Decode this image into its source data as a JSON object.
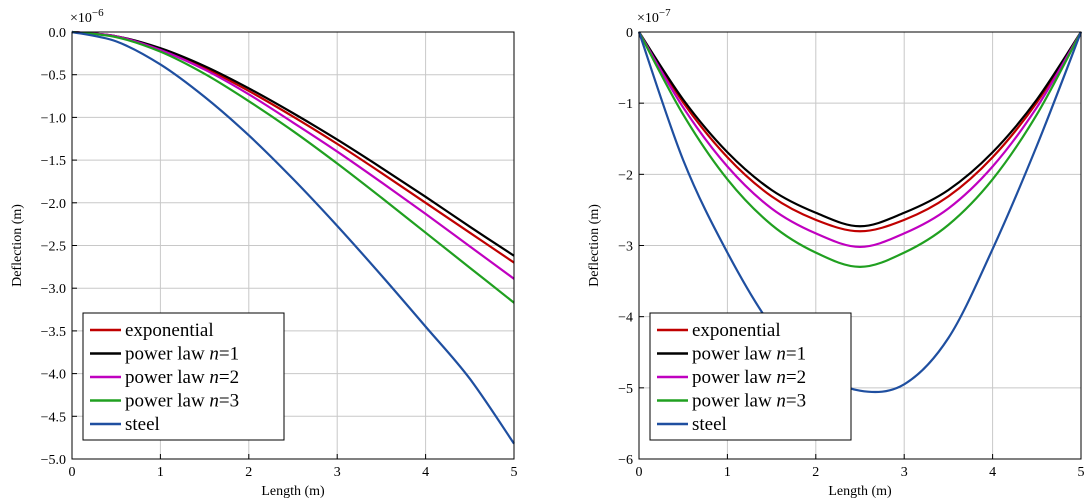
{
  "chart_data": [
    {
      "type": "line",
      "xlabel": "Length (m)",
      "ylabel": "Deflection (m)",
      "multiplier_prefix": "×10",
      "multiplier_exp": "−6",
      "xlim": [
        0,
        5
      ],
      "ylim": [
        -5.0,
        0.0
      ],
      "xticks": [
        "0",
        "1",
        "2",
        "3",
        "4",
        "5"
      ],
      "yticks": [
        "0.0",
        "−0.5",
        "−1.0",
        "−1.5",
        "−2.0",
        "−2.5",
        "−3.0",
        "−3.5",
        "−4.0",
        "−4.5",
        "−5.0"
      ],
      "grid": true,
      "legend_position": "bottom-left",
      "x": [
        0,
        0.5,
        1,
        1.5,
        2,
        2.5,
        3,
        3.5,
        4,
        4.5,
        5
      ],
      "series": [
        {
          "name": "exponential",
          "color": "#c00000",
          "values": [
            0,
            -0.05,
            -0.2,
            -0.42,
            -0.69,
            -0.99,
            -1.31,
            -1.65,
            -2.0,
            -2.35,
            -2.7
          ]
        },
        {
          "name": "power law n=1",
          "color": "#000000",
          "values": [
            0,
            -0.05,
            -0.19,
            -0.4,
            -0.66,
            -0.95,
            -1.26,
            -1.59,
            -1.93,
            -2.28,
            -2.62
          ]
        },
        {
          "name": "power law n=2",
          "color": "#c000c0",
          "values": [
            0,
            -0.05,
            -0.21,
            -0.44,
            -0.73,
            -1.06,
            -1.4,
            -1.76,
            -2.13,
            -2.51,
            -2.89
          ]
        },
        {
          "name": "power law n=3",
          "color": "#20a020",
          "values": [
            0,
            -0.06,
            -0.23,
            -0.49,
            -0.81,
            -1.16,
            -1.54,
            -1.94,
            -2.35,
            -2.76,
            -3.17
          ]
        },
        {
          "name": "steel",
          "color": "#1f4fa0",
          "values": [
            0,
            -0.11,
            -0.38,
            -0.76,
            -1.21,
            -1.72,
            -2.27,
            -2.85,
            -3.45,
            -4.06,
            -4.82
          ]
        }
      ]
    },
    {
      "type": "line",
      "xlabel": "Length (m)",
      "ylabel": "Deflection (m)",
      "multiplier_prefix": "×10",
      "multiplier_exp": "−7",
      "xlim": [
        0,
        5
      ],
      "ylim": [
        -6,
        0
      ],
      "xticks": [
        "0",
        "1",
        "2",
        "3",
        "4",
        "5"
      ],
      "yticks": [
        "0",
        "−1",
        "−2",
        "−3",
        "−4",
        "−5",
        "−6"
      ],
      "grid": true,
      "legend_position": "bottom-left",
      "x": [
        0,
        0.5,
        1,
        1.5,
        2,
        2.5,
        3,
        3.5,
        4,
        4.5,
        5
      ],
      "series": [
        {
          "name": "exponential",
          "color": "#c00000",
          "values": [
            0,
            -0.99,
            -1.76,
            -2.31,
            -2.64,
            -2.8,
            -2.64,
            -2.31,
            -1.76,
            -0.99,
            0
          ]
        },
        {
          "name": "power law n=1",
          "color": "#000000",
          "values": [
            0,
            -0.95,
            -1.69,
            -2.22,
            -2.54,
            -2.73,
            -2.54,
            -2.22,
            -1.69,
            -0.95,
            0
          ]
        },
        {
          "name": "power law n=2",
          "color": "#c000c0",
          "values": [
            0,
            -1.06,
            -1.89,
            -2.48,
            -2.83,
            -3.02,
            -2.83,
            -2.48,
            -1.89,
            -1.06,
            0
          ]
        },
        {
          "name": "power law n=3",
          "color": "#20a020",
          "values": [
            0,
            -1.16,
            -2.07,
            -2.71,
            -3.1,
            -3.3,
            -3.1,
            -2.71,
            -2.07,
            -1.16,
            0
          ]
        },
        {
          "name": "steel",
          "color": "#1f4fa0",
          "values": [
            0,
            -1.8,
            -3.1,
            -4.13,
            -4.75,
            -5.04,
            -4.95,
            -4.3,
            -3.05,
            -1.6,
            0
          ]
        }
      ]
    }
  ]
}
